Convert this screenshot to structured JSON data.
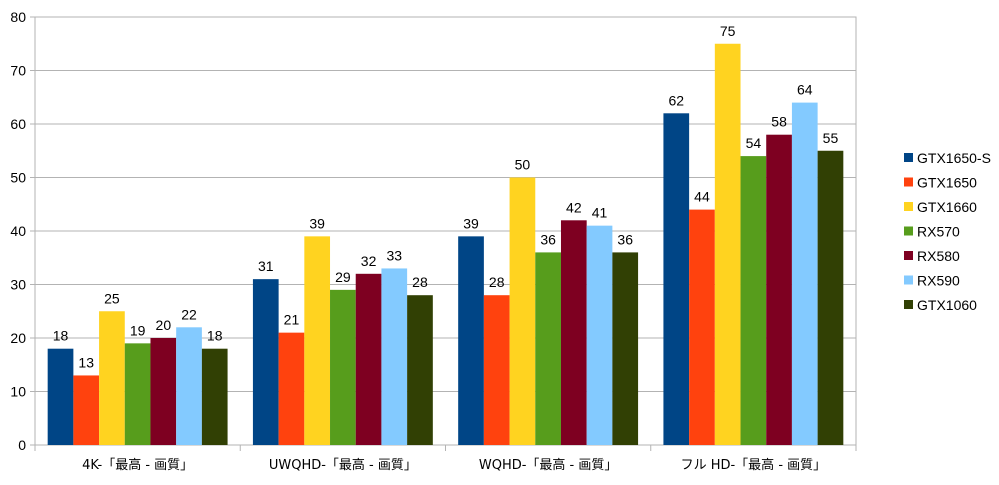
{
  "chart_data": {
    "type": "bar",
    "categories": [
      "4K-「最高 - 画質」",
      "UWQHD-「最高 - 画質」",
      "WQHD-「最高 - 画質」",
      "フル HD-「最高 - 画質」"
    ],
    "series": [
      {
        "name": "GTX1650-S",
        "color": "#004586",
        "values": [
          18,
          31,
          39,
          62
        ]
      },
      {
        "name": "GTX1650",
        "color": "#ff420e",
        "values": [
          13,
          21,
          28,
          44
        ]
      },
      {
        "name": "GTX1660",
        "color": "#ffd320",
        "values": [
          25,
          39,
          50,
          75
        ]
      },
      {
        "name": "RX570",
        "color": "#579d1c",
        "values": [
          19,
          29,
          36,
          54
        ]
      },
      {
        "name": "RX580",
        "color": "#7e0021",
        "values": [
          20,
          32,
          42,
          58
        ]
      },
      {
        "name": "RX590",
        "color": "#83caff",
        "values": [
          22,
          33,
          41,
          64
        ]
      },
      {
        "name": "GTX1060",
        "color": "#314004",
        "values": [
          18,
          28,
          36,
          55
        ]
      }
    ],
    "yticks": [
      0,
      10,
      20,
      30,
      40,
      50,
      60,
      70,
      80
    ],
    "ylim": [
      0,
      80
    ],
    "grid": true,
    "legend_position": "right",
    "title": "",
    "xlabel": "",
    "ylabel": ""
  }
}
